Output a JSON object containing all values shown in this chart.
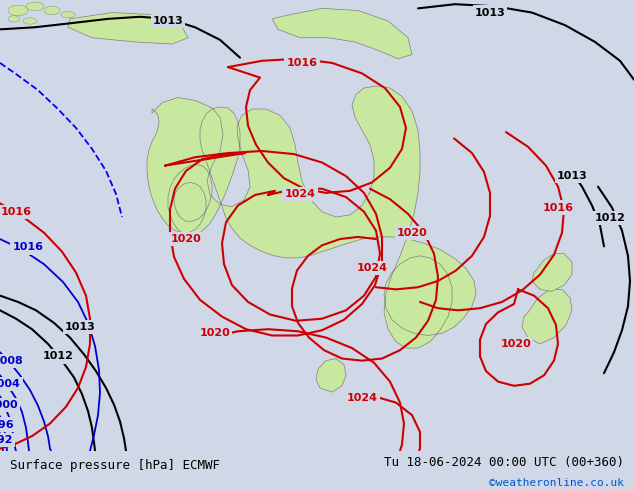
{
  "title_left": "Surface pressure [hPa] ECMWF",
  "title_right": "Tu 18-06-2024 00:00 UTC (00+360)",
  "copyright": "©weatheronline.co.uk",
  "bg_color": "#d0d8e8",
  "land_color": "#c8e8a0",
  "border_color": "#808080",
  "red_contour_color": "#cc0000",
  "blue_contour_color": "#0000cc",
  "black_contour_color": "#000000",
  "font_color_left": "#000000",
  "font_color_right": "#000000",
  "font_color_copyright": "#0055cc",
  "bottom_bar_color": "#e8e8e8",
  "figsize": [
    6.34,
    4.9
  ],
  "dpi": 100
}
